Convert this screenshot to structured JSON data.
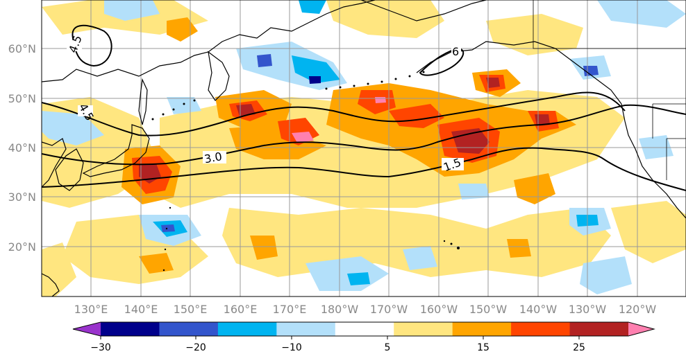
{
  "map": {
    "lat_tick_labels": [
      "60°N",
      "50°N",
      "40°N",
      "30°N",
      "20°N"
    ],
    "lon_tick_labels": [
      "130°E",
      "140°E",
      "150°E",
      "160°E",
      "170°E",
      "180°W",
      "170°W",
      "160°W",
      "150°W",
      "140°W",
      "130°W",
      "120°W"
    ],
    "contour_labels": [
      "4.5",
      "4.5",
      "6",
      "3.0",
      "1.5"
    ],
    "line_color": "#000000",
    "grid_color": "#999999"
  },
  "colorbar": {
    "tick_labels": [
      "−30",
      "−20",
      "−10",
      "5",
      "15",
      "25"
    ],
    "bins": [
      {
        "color": "#9933cc"
      },
      {
        "color": "#00008b"
      },
      {
        "color": "#3355cc"
      },
      {
        "color": "#00b4f0"
      },
      {
        "color": "#b3e0fa"
      },
      {
        "color": "#ffffff"
      },
      {
        "color": "#ffe680"
      },
      {
        "color": "#ffa500"
      },
      {
        "color": "#ff4500"
      },
      {
        "color": "#b22222"
      },
      {
        "color": "#ff80b0"
      }
    ]
  },
  "palette": {
    "light_yellow": "#ffe680",
    "orange": "#ffa500",
    "red_orange": "#ff4500",
    "dark_red": "#b22222",
    "pink": "#ff80b0",
    "light_blue": "#b3e0fa",
    "blue": "#00b4f0",
    "royal_blue": "#3355cc",
    "navy": "#00008b"
  }
}
